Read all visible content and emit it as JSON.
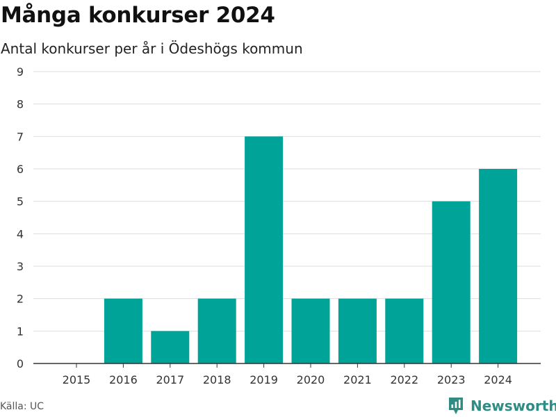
{
  "header": {
    "title": "Många konkurser 2024",
    "subtitle": "Antal konkurser per år i Ödeshögs kommun"
  },
  "footer": {
    "source": "Källa: UC",
    "brand": "Newsworthy",
    "brand_icon": "newsworthy-logo-icon"
  },
  "colors": {
    "bar": "#00a398",
    "grid": "#dddddd",
    "axis": "#333333",
    "brand": "#2e8c85"
  },
  "chart_data": {
    "type": "bar",
    "title": "Många konkurser 2024",
    "subtitle": "Antal konkurser per år i Ödeshögs kommun",
    "xlabel": "",
    "ylabel": "",
    "categories": [
      "2015",
      "2016",
      "2017",
      "2018",
      "2019",
      "2020",
      "2021",
      "2022",
      "2023",
      "2024"
    ],
    "values": [
      0,
      2,
      1,
      2,
      7,
      2,
      2,
      2,
      5,
      6
    ],
    "ylim": [
      0,
      9
    ],
    "yticks": [
      0,
      1,
      2,
      3,
      4,
      5,
      6,
      7,
      8,
      9
    ],
    "grid": true,
    "legend": "none"
  }
}
